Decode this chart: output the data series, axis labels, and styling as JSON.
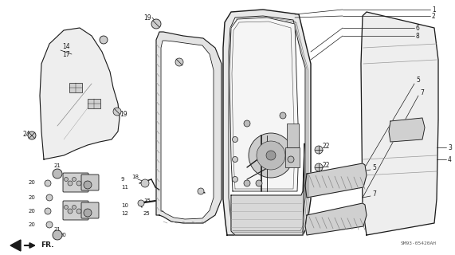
{
  "bg_color": "#ffffff",
  "line_color": "#1a1a1a",
  "gray1": "#c8c8c8",
  "gray2": "#e0e0e0",
  "gray3": "#b0b0b0",
  "watermark": "SM93-05420AH",
  "fr_label": "FR.",
  "fig_width": 5.71,
  "fig_height": 3.2,
  "dpi": 100
}
